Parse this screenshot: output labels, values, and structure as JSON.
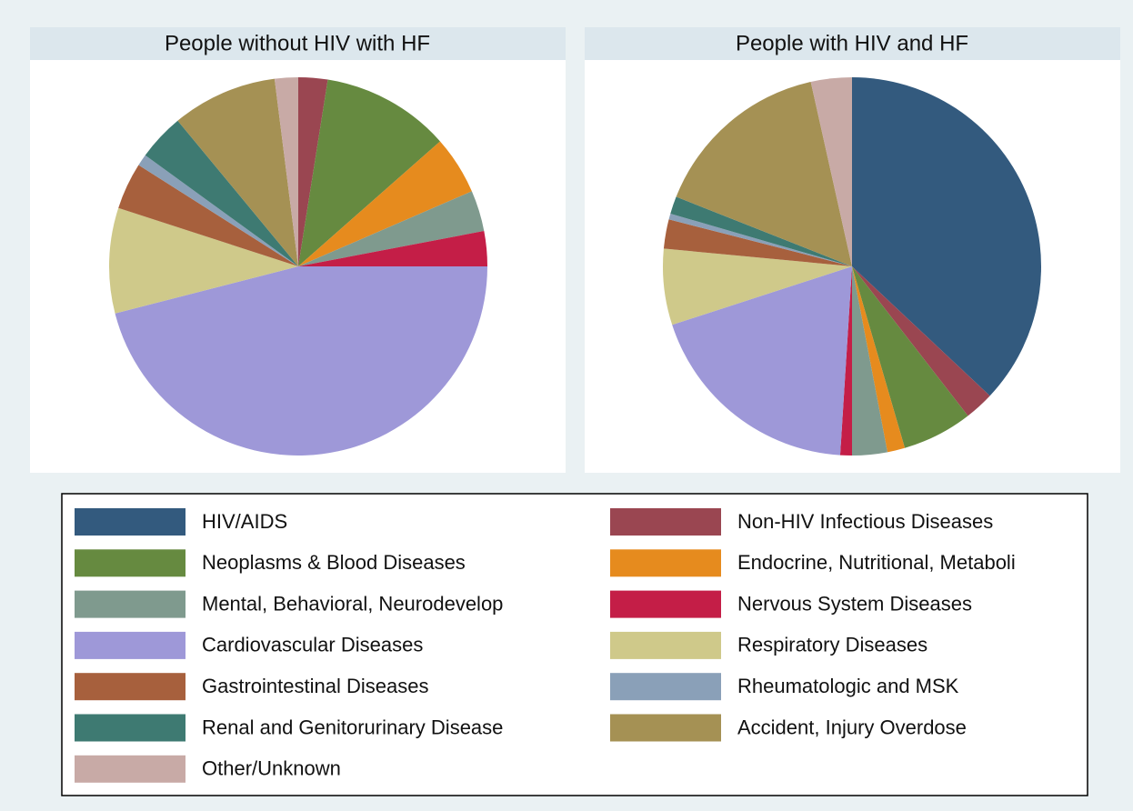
{
  "chart_data": [
    {
      "type": "pie",
      "title": "People without HIV with HF",
      "categories": [
        "HIV/AIDS",
        "Non-HIV Infectious Diseases",
        "Neoplasms & Blood Diseases",
        "Endocrine, Nutritional, Metaboli",
        "Mental, Behavioral, Neurodevelop",
        "Nervous System Diseases",
        "Cardiovascular Diseases",
        "Respiratory Diseases",
        "Gastrointestinal Diseases",
        "Rheumatologic and MSK",
        "Renal and Genitorurinary Disease",
        "Accident, Injury Overdose",
        "Other/Unknown"
      ],
      "colors": [
        "#335a7e",
        "#9a4651",
        "#668a40",
        "#e68b1e",
        "#7f9a8e",
        "#c41e47",
        "#9e98d8",
        "#cfc98a",
        "#a7603d",
        "#8aa0b8",
        "#3e7a72",
        "#a59154",
        "#c8aaa6"
      ],
      "values": [
        0,
        2.5,
        11,
        5,
        3.5,
        3,
        46,
        9,
        4,
        1,
        4,
        9,
        2
      ]
    },
    {
      "type": "pie",
      "title": "People with HIV and HF",
      "values": [
        37,
        2.5,
        6,
        1.5,
        3,
        1,
        19,
        6.5,
        2.5,
        0.5,
        1.5,
        15.5,
        3.5
      ]
    }
  ]
}
